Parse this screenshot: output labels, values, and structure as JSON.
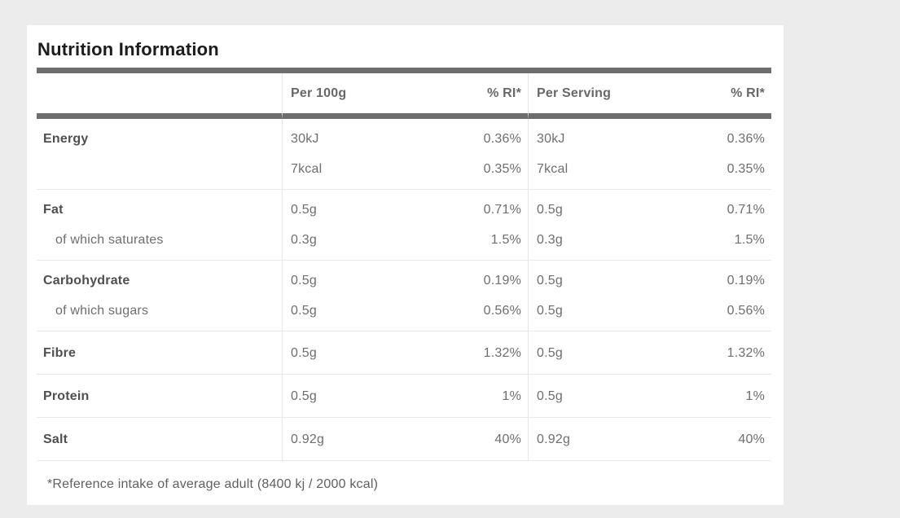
{
  "title": "Nutrition Information",
  "table": {
    "headers": {
      "col1": "",
      "per100g": "Per 100g",
      "ri1": "% RI*",
      "perServing": "Per Serving",
      "ri2": "% RI*"
    },
    "rows": [
      {
        "label": "Energy",
        "v1": "30kJ",
        "r1": "0.36%",
        "v2": "30kJ",
        "r2": "0.36%"
      },
      {
        "label": "",
        "v1": "7kcal",
        "r1": "0.35%",
        "v2": "7kcal",
        "r2": "0.35%"
      },
      {
        "label": "Fat",
        "v1": "0.5g",
        "r1": "0.71%",
        "v2": "0.5g",
        "r2": "0.71%"
      },
      {
        "label": "of which saturates",
        "v1": "0.3g",
        "r1": "1.5%",
        "v2": "0.3g",
        "r2": "1.5%"
      },
      {
        "label": "Carbohydrate",
        "v1": "0.5g",
        "r1": "0.19%",
        "v2": "0.5g",
        "r2": "0.19%"
      },
      {
        "label": "of which sugars",
        "v1": "0.5g",
        "r1": "0.56%",
        "v2": "0.5g",
        "r2": "0.56%"
      },
      {
        "label": "Fibre",
        "v1": "0.5g",
        "r1": "1.32%",
        "v2": "0.5g",
        "r2": "1.32%"
      },
      {
        "label": "Protein",
        "v1": "0.5g",
        "r1": "1%",
        "v2": "0.5g",
        "r2": "1%"
      },
      {
        "label": "Salt",
        "v1": "0.92g",
        "r1": "40%",
        "v2": "0.92g",
        "r2": "40%"
      }
    ]
  },
  "footnote": "*Reference intake of average adult (8400 kj / 2000 kcal)",
  "colors": {
    "page_background": "#ececec",
    "card_background": "#ffffff",
    "separator_bar": "#6d6d6d",
    "title_text": "#1c1c1c",
    "header_text": "#65696b",
    "label_text": "#4f4f4f",
    "body_text": "#6e6e6e",
    "row_divider": "#e9e9e9"
  }
}
